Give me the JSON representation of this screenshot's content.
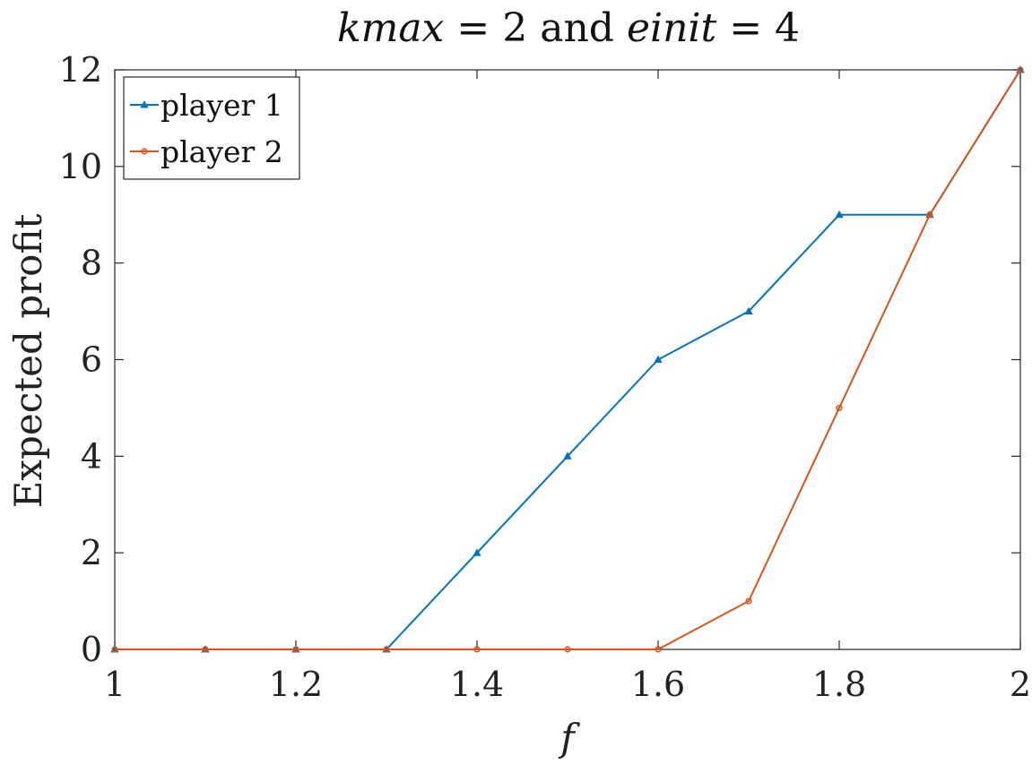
{
  "chart_data": {
    "type": "line",
    "title": "kmax = 2 and einit = 4",
    "title_parts": {
      "var1": "kmax",
      "eq1": "= 2",
      "and": "and",
      "var2": "einit",
      "eq2": "= 4"
    },
    "xlabel": "f",
    "ylabel": "Expected profit",
    "xlim": [
      1,
      2
    ],
    "ylim": [
      0,
      12
    ],
    "x_ticks": [
      1,
      1.2,
      1.4,
      1.6,
      1.8,
      2
    ],
    "x_tick_labels": [
      "1",
      "1.2",
      "1.4",
      "1.6",
      "1.8",
      "2"
    ],
    "y_ticks": [
      0,
      2,
      4,
      6,
      8,
      10,
      12
    ],
    "y_tick_labels": [
      "0",
      "2",
      "4",
      "6",
      "8",
      "10",
      "12"
    ],
    "x": [
      1.0,
      1.1,
      1.2,
      1.3,
      1.4,
      1.5,
      1.6,
      1.7,
      1.8,
      1.9,
      2.0
    ],
    "series": [
      {
        "name": "player 1",
        "color": "#0072BD",
        "marker": "triangle",
        "values": [
          0,
          0,
          0,
          0,
          2,
          4,
          6,
          7,
          9,
          9,
          12
        ]
      },
      {
        "name": "player 2",
        "color": "#D95319",
        "marker": "circle",
        "values": [
          0,
          0,
          0,
          0,
          0,
          0,
          0,
          1,
          5,
          9,
          12
        ]
      }
    ],
    "legend_position": "top-left",
    "grid": false
  }
}
